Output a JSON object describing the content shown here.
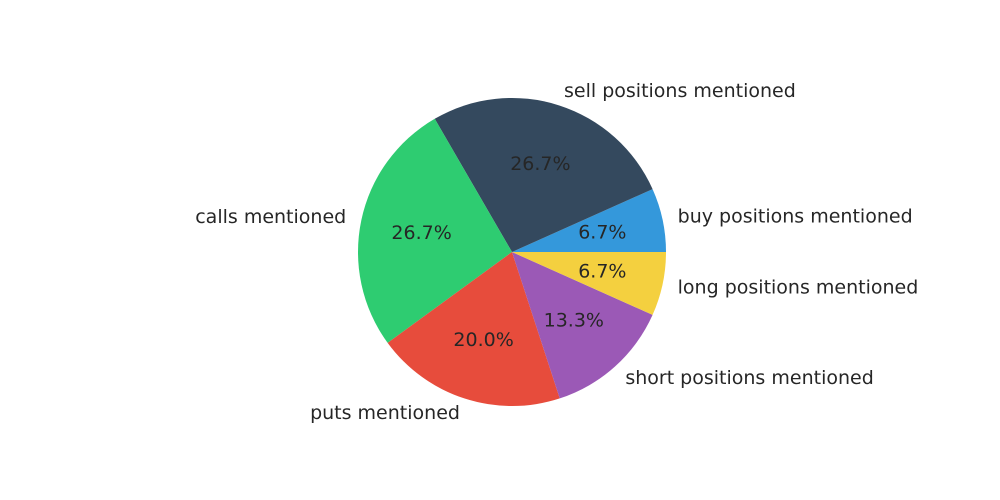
{
  "chart_data": {
    "type": "pie",
    "start_angle_deg": 0,
    "direction": "counterclockwise",
    "slices": [
      {
        "label": "buy positions mentioned",
        "value": 6.7,
        "pct_label": "6.7%",
        "color": "#3498db"
      },
      {
        "label": "sell positions mentioned",
        "value": 26.7,
        "pct_label": "26.7%",
        "color": "#34495e"
      },
      {
        "label": "calls mentioned",
        "value": 26.7,
        "pct_label": "26.7%",
        "color": "#2ecc71"
      },
      {
        "label": "puts mentioned",
        "value": 20.0,
        "pct_label": "20.0%",
        "color": "#e74c3c"
      },
      {
        "label": "short positions mentioned",
        "value": 13.3,
        "pct_label": "13.3%",
        "color": "#9b59b6"
      },
      {
        "label": "long positions mentioned",
        "value": 6.7,
        "pct_label": "6.7%",
        "color": "#f4d03f"
      }
    ]
  }
}
